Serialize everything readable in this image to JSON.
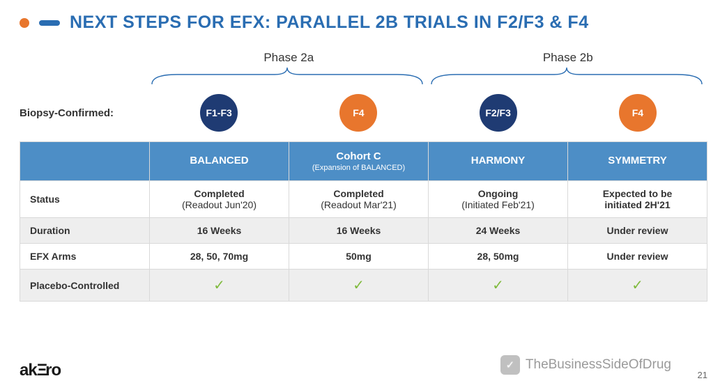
{
  "colors": {
    "accent_blue": "#2a6db2",
    "navy": "#1f3b73",
    "orange": "#e8762d",
    "header_bg": "#4d8ec6",
    "row_alt_bg": "#eeeeee",
    "check_green": "#7fba3c",
    "bracket": "#2a6db2",
    "border": "#d9d9d9",
    "title_color": "#2a6db2",
    "logo_color": "#1a1a1a"
  },
  "title": "NEXT STEPS FOR EFX: PARALLEL 2B TRIALS IN F2/F3 & F4",
  "phases": {
    "left": "Phase 2a",
    "right": "Phase 2b"
  },
  "biopsy_label": "Biopsy-Confirmed:",
  "chips": [
    {
      "label": "F1-F3",
      "color_key": "navy"
    },
    {
      "label": "F4",
      "color_key": "orange"
    },
    {
      "label": "F2/F3",
      "color_key": "navy"
    },
    {
      "label": "F4",
      "color_key": "orange"
    }
  ],
  "table": {
    "corner": "",
    "columns": [
      {
        "title": "BALANCED",
        "subtitle": ""
      },
      {
        "title": "Cohort C",
        "subtitle": "(Expansion of BALANCED)"
      },
      {
        "title": "HARMONY",
        "subtitle": ""
      },
      {
        "title": "SYMMETRY",
        "subtitle": ""
      }
    ],
    "rows": [
      {
        "label": "Status",
        "cells": [
          {
            "main": "Completed",
            "sub": "(Readout Jun'20)"
          },
          {
            "main": "Completed",
            "sub": "(Readout Mar'21)"
          },
          {
            "main": "Ongoing",
            "sub": "(Initiated Feb'21)"
          },
          {
            "main": "Expected to be",
            "sub": "initiated 2H'21",
            "bold_sub": true
          }
        ],
        "alt": false
      },
      {
        "label": "Duration",
        "cells": [
          {
            "main": "16 Weeks"
          },
          {
            "main": "16 Weeks"
          },
          {
            "main": "24 Weeks"
          },
          {
            "main": "Under review"
          }
        ],
        "alt": true
      },
      {
        "label": "EFX Arms",
        "cells": [
          {
            "main": "28, 50, 70mg"
          },
          {
            "main": "50mg"
          },
          {
            "main": "28, 50mg"
          },
          {
            "main": "Under review"
          }
        ],
        "alt": false
      },
      {
        "label": "Placebo-Controlled",
        "cells": [
          {
            "check": true
          },
          {
            "check": true
          },
          {
            "check": true
          },
          {
            "check": true
          }
        ],
        "alt": true
      }
    ]
  },
  "footer": {
    "logo_pre": "ak",
    "logo_mid": "Ξ",
    "logo_post": "ro",
    "page": "21"
  },
  "watermark": {
    "icon": "✓",
    "text": "TheBusinessSideOfDrug"
  }
}
